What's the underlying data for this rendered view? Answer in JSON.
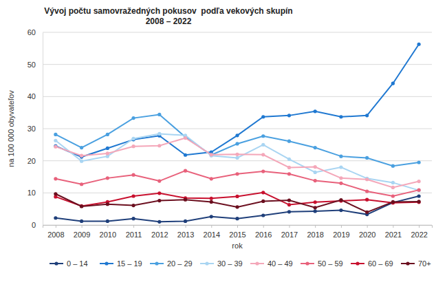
{
  "chart_data": {
    "type": "line",
    "title": "Vývoj počtu samovražedných pokusov  podľa vekových skupín",
    "subtitle": "2008 – 2022",
    "x_label": "rok",
    "y_label": "na 100 000 obyvateľov",
    "categories": [
      "2008",
      "2009",
      "2010",
      "2011",
      "2012",
      "2013",
      "2014",
      "2015",
      "2016",
      "2017",
      "2018",
      "2019",
      "2020",
      "2021",
      "2022"
    ],
    "ylim": [
      0,
      60
    ],
    "yticks": [
      0,
      10,
      20,
      30,
      40,
      50,
      60
    ],
    "grid": true,
    "legend": "bottom",
    "marker": "circle",
    "line_style": "solid",
    "series": [
      {
        "name": "0 – 14",
        "color": "#1f3f7a",
        "values": [
          2.2,
          1.2,
          1.2,
          2.0,
          1.0,
          1.2,
          2.6,
          2.0,
          3.0,
          4.1,
          4.3,
          4.6,
          3.3,
          7.0,
          9.0
        ]
      },
      {
        "name": "15 – 19",
        "color": "#1f78d1",
        "values": [
          24.6,
          21.2,
          23.9,
          26.6,
          27.8,
          21.8,
          22.7,
          27.9,
          33.7,
          34.1,
          35.4,
          33.7,
          34.1,
          44.1,
          56.3
        ]
      },
      {
        "name": "20 – 29",
        "color": "#4aa0e0",
        "values": [
          28.2,
          24.1,
          28.2,
          33.3,
          34.4,
          27.4,
          21.8,
          25.3,
          27.7,
          26.1,
          24.1,
          21.4,
          20.9,
          18.4,
          19.5
        ]
      },
      {
        "name": "30 – 39",
        "color": "#a9d5f2",
        "values": [
          26.3,
          19.9,
          21.4,
          26.9,
          28.4,
          27.9,
          21.6,
          20.9,
          25.0,
          20.5,
          16.4,
          18.0,
          14.5,
          13.2,
          10.8
        ]
      },
      {
        "name": "40 – 49",
        "color": "#f4a7b9",
        "values": [
          24.4,
          21.6,
          22.3,
          24.5,
          24.7,
          27.1,
          21.9,
          22.0,
          21.9,
          17.9,
          18.1,
          14.6,
          14.2,
          11.7,
          13.6
        ]
      },
      {
        "name": "50 – 59",
        "color": "#e8617b",
        "values": [
          14.4,
          12.7,
          14.6,
          15.6,
          13.7,
          16.9,
          14.4,
          15.9,
          16.7,
          15.9,
          13.8,
          13.0,
          10.5,
          9.0,
          10.9
        ]
      },
      {
        "name": "60 – 69",
        "color": "#c8102e",
        "values": [
          8.8,
          5.9,
          7.2,
          9.0,
          9.9,
          8.4,
          8.3,
          8.9,
          10.1,
          6.3,
          7.1,
          7.5,
          7.9,
          6.9,
          7.1
        ]
      },
      {
        "name": "70+",
        "color": "#6b0f1f",
        "values": [
          9.7,
          5.8,
          6.5,
          6.1,
          7.6,
          7.9,
          7.2,
          5.6,
          7.4,
          7.7,
          5.4,
          7.8,
          4.0,
          7.2,
          7.3
        ]
      }
    ]
  }
}
